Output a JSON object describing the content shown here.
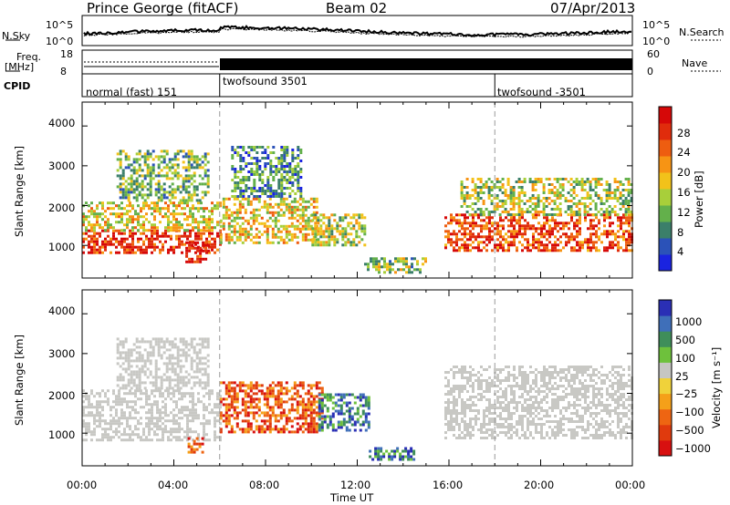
{
  "header": {
    "site": "Prince George (fitACF)",
    "beam": "Beam 02",
    "date": "07/Apr/2013"
  },
  "top_panels": {
    "nsky_label": "N.Sky",
    "nsky_ticks": [
      "10^5",
      "10^0"
    ],
    "nsearch_label": "N.Search",
    "nsearch_ticks": [
      "10^5",
      "10^0"
    ],
    "freq_label_1": "Freq.",
    "freq_label_2": "[MHz]",
    "freq_ticks": [
      "18",
      "8"
    ],
    "nave_label": "Nave",
    "nave_ticks": [
      "60",
      "0"
    ],
    "cpid_label": "CPID",
    "cpid_segments": [
      {
        "label": "normal (fast) 151",
        "start_hr": 0,
        "end_hr": 6
      },
      {
        "label": "twofsound 3501",
        "start_hr": 6,
        "end_hr": 18
      },
      {
        "label": "twofsound -3501",
        "start_hr": 18,
        "end_hr": 24
      }
    ]
  },
  "chart_data": [
    {
      "type": "heatmap",
      "title": "",
      "xlabel": "Time UT",
      "ylabel": "Slant Range [km]",
      "xlim_hr": [
        0,
        24
      ],
      "ylim": [
        180,
        4600
      ],
      "yticks": [
        "1000",
        "2000",
        "3000",
        "4000"
      ],
      "xticks": [
        "00:00",
        "04:00",
        "08:00",
        "12:00",
        "16:00",
        "20:00",
        "00:00"
      ],
      "colorbar": {
        "label": "Power [dB]",
        "ticks": [
          "4",
          "8",
          "12",
          "16",
          "20",
          "24",
          "28"
        ],
        "colors": [
          "#1a23e0",
          "#2b52b8",
          "#3b7f6a",
          "#63b04b",
          "#a8cf3a",
          "#f2c21a",
          "#f79414",
          "#ee5d10",
          "#e02c0c",
          "#d60808"
        ]
      },
      "echo_regions": [
        {
          "t0": 0.0,
          "t1": 6.0,
          "r0": 800,
          "r1": 1400,
          "level": 0.9
        },
        {
          "t0": 0.0,
          "t1": 6.0,
          "r0": 1400,
          "r1": 2100,
          "level": 0.55
        },
        {
          "t0": 1.5,
          "t1": 5.5,
          "r0": 2100,
          "r1": 3400,
          "level": 0.35
        },
        {
          "t0": 4.5,
          "t1": 5.5,
          "r0": 600,
          "r1": 1100,
          "level": 0.95
        },
        {
          "t0": 6.0,
          "t1": 10.2,
          "r0": 1100,
          "r1": 2200,
          "level": 0.55
        },
        {
          "t0": 6.5,
          "t1": 9.5,
          "r0": 2200,
          "r1": 3500,
          "level": 0.25
        },
        {
          "t0": 10.0,
          "t1": 12.3,
          "r0": 1000,
          "r1": 1800,
          "level": 0.45
        },
        {
          "t0": 12.3,
          "t1": 15.0,
          "r0": 300,
          "r1": 700,
          "level": 0.4
        },
        {
          "t0": 15.8,
          "t1": 24.0,
          "r0": 900,
          "r1": 1800,
          "level": 0.85
        },
        {
          "t0": 16.5,
          "t1": 24.0,
          "r0": 1800,
          "r1": 2700,
          "level": 0.45
        }
      ]
    },
    {
      "type": "heatmap",
      "title": "",
      "xlabel": "Time UT",
      "ylabel": "Slant Range [km]",
      "xlim_hr": [
        0,
        24
      ],
      "ylim": [
        180,
        4600
      ],
      "yticks": [
        "1000",
        "2000",
        "3000",
        "4000"
      ],
      "xticks": [
        "00:00",
        "04:00",
        "08:00",
        "12:00",
        "16:00",
        "20:00",
        "00:00"
      ],
      "colorbar": {
        "label": "Velocity  [m s⁻¹]",
        "ticks": [
          "1000",
          "500",
          "100",
          "25",
          "−25",
          "−100",
          "−500",
          "−1000"
        ],
        "colors": [
          "#2a2fb5",
          "#3f6fb9",
          "#3f8e5a",
          "#6ec13c",
          "#c6c6c2",
          "#f0d23a",
          "#f5a019",
          "#ee6512",
          "#e03a0d",
          "#d81010"
        ]
      },
      "echo_regions": [
        {
          "t0": 0.0,
          "t1": 6.0,
          "r0": 800,
          "r1": 2100,
          "class": "ground"
        },
        {
          "t0": 1.5,
          "t1": 5.5,
          "r0": 2100,
          "r1": 3400,
          "class": "ground"
        },
        {
          "t0": 4.6,
          "t1": 5.3,
          "r0": 500,
          "r1": 900,
          "class": "negative"
        },
        {
          "t0": 6.0,
          "t1": 10.5,
          "r0": 1000,
          "r1": 2300,
          "class": "negative"
        },
        {
          "t0": 10.3,
          "t1": 12.5,
          "r0": 1100,
          "r1": 2000,
          "class": "positive"
        },
        {
          "t0": 12.5,
          "t1": 14.5,
          "r0": 350,
          "r1": 650,
          "class": "positive"
        },
        {
          "t0": 15.8,
          "t1": 24.0,
          "r0": 900,
          "r1": 2700,
          "class": "ground"
        }
      ]
    }
  ]
}
